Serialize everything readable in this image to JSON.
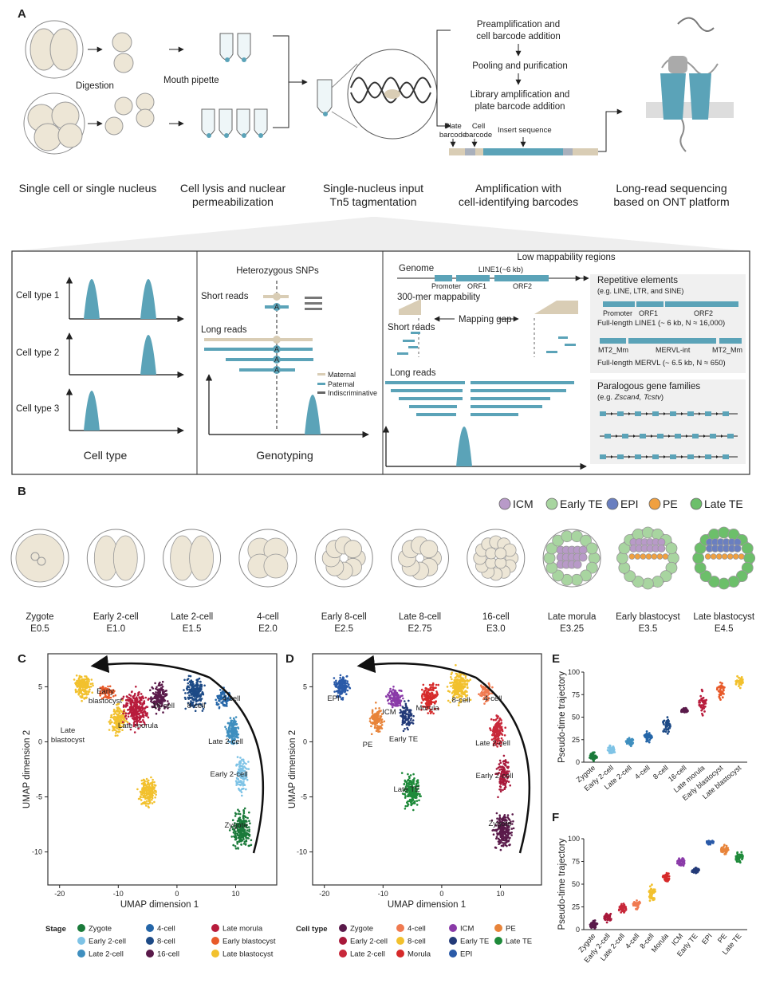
{
  "panel_a": {
    "label": "A",
    "digestion": "Digestion",
    "mouth_pipette": "Mouth pipette",
    "steps": [
      "Preamplification and cell barcode addition",
      "Pooling and purification",
      "Library amplification and plate barcode addition"
    ],
    "barcode_labels": {
      "plate": "Plate barcode",
      "cell": "Cell barcode",
      "insert": "Insert sequence"
    },
    "captions": [
      "Single cell or single nucleus",
      "Cell lysis and nuclear permeabilization",
      "Single-nucleus input Tn5 tagmentation",
      "Amplification with cell-identifying barcodes",
      "Long-read sequencing based on ONT platform"
    ],
    "cell_types": [
      "Cell type 1",
      "Cell type 2",
      "Cell type 3"
    ],
    "cell_type_caption": "Cell type",
    "het_snps": "Heterozygous SNPs",
    "short_reads": "Short reads",
    "long_reads": "Long reads",
    "allele": "A",
    "geno_legend": [
      "Maternal",
      "Paternal",
      "Indiscriminative"
    ],
    "genotyping_caption": "Genotyping",
    "low_map_title": "Low mappability regions",
    "genome": "Genome",
    "line1": "LINE1(~6 kb)",
    "promoter": "Promoter",
    "orf1": "ORF1",
    "orf2": "ORF2",
    "mappability": "300-mer mappability",
    "mapping_gap": "Mapping gap",
    "repetitive": "Repetitive elements",
    "repetitive_eg": "(e.g. LINE, LTR, and SINE)",
    "fl_line1": "Full-length LINE1 (~ 6 kb, N ≈ 16,000)",
    "mt2": "MT2_Mm",
    "mervl_int": "MERVL-int",
    "fl_mervl": "Full-length MERVL (~ 6.5 kb, N ≈ 650)",
    "paralogous": "Paralogous gene families",
    "paralogous_eg_prefix": "(e.g. ",
    "paralogous_eg_genes": "Zscan4, Tcstv",
    "paralogous_eg_suffix": ")"
  },
  "panel_b": {
    "label": "B",
    "legend": [
      {
        "name": "ICM",
        "color": "#b89ac8"
      },
      {
        "name": "Early TE",
        "color": "#a8d5a0"
      },
      {
        "name": "EPI",
        "color": "#6a7fc0"
      },
      {
        "name": "PE",
        "color": "#f0a040"
      },
      {
        "name": "Late TE",
        "color": "#6cbf6a"
      }
    ],
    "stages": [
      {
        "name": "Zygote",
        "day": "E0.5"
      },
      {
        "name": "Early 2-cell",
        "day": "E1.0"
      },
      {
        "name": "Late 2-cell",
        "day": "E1.5"
      },
      {
        "name": "4-cell",
        "day": "E2.0"
      },
      {
        "name": "Early 8-cell",
        "day": "E2.5"
      },
      {
        "name": "Late 8-cell",
        "day": "E2.75"
      },
      {
        "name": "16-cell",
        "day": "E3.0"
      },
      {
        "name": "Late morula",
        "day": "E3.25"
      },
      {
        "name": "Early blastocyst",
        "day": "E3.5"
      },
      {
        "name": "Late blastocyst",
        "day": "E4.5"
      }
    ]
  },
  "panel_c": {
    "label": "C",
    "xlabel": "UMAP dimension 1",
    "ylabel": "UMAP dimension 2",
    "xticks": [
      "-20",
      "-10",
      "0",
      "10"
    ],
    "yticks": [
      "5",
      "0",
      "-5",
      "-10"
    ],
    "cluster_labels": [
      "Early blastocyst",
      "Late blastocyst",
      "16-cell",
      "8-cell",
      "4-cell",
      "Late morula",
      "Late 2-cell",
      "Early 2-cell",
      "Zygote"
    ],
    "legend_title": "Stage",
    "legend": [
      {
        "name": "Zygote",
        "color": "#1a7a3a"
      },
      {
        "name": "Early 2-cell",
        "color": "#7ec3e6"
      },
      {
        "name": "Late 2-cell",
        "color": "#3f8fbf"
      },
      {
        "name": "4-cell",
        "color": "#2566a8"
      },
      {
        "name": "8-cell",
        "color": "#1d4a86"
      },
      {
        "name": "16-cell",
        "color": "#5a1a4a"
      },
      {
        "name": "Late morula",
        "color": "#b81c3c"
      },
      {
        "name": "Early blastocyst",
        "color": "#e85a2a"
      },
      {
        "name": "Late blastocyst",
        "color": "#f2c12e"
      }
    ]
  },
  "panel_d": {
    "label": "D",
    "xlabel": "UMAP dimension 1",
    "ylabel": "UMAP dimension 2",
    "xticks": [
      "-20",
      "-10",
      "0",
      "10"
    ],
    "yticks": [
      "5",
      "0",
      "-5",
      "-10"
    ],
    "cluster_labels": [
      "EPI",
      "ICM",
      "Morula",
      "8-cell",
      "4-cell",
      "PE",
      "Early TE",
      "Late 2-cell",
      "Early 2-cell",
      "Late TE",
      "Zygote"
    ],
    "legend_title": "Cell type",
    "legend": [
      {
        "name": "Zygote",
        "color": "#5a1a4a"
      },
      {
        "name": "Early 2-cell",
        "color": "#a8183a"
      },
      {
        "name": "Late 2-cell",
        "color": "#c8283a"
      },
      {
        "name": "4-cell",
        "color": "#f07a50"
      },
      {
        "name": "8-cell",
        "color": "#f2c12e"
      },
      {
        "name": "Morula",
        "color": "#d62a2a"
      },
      {
        "name": "ICM",
        "color": "#8a3aa8"
      },
      {
        "name": "Early TE",
        "color": "#233a78"
      },
      {
        "name": "EPI",
        "color": "#2a5aa8"
      },
      {
        "name": "PE",
        "color": "#e8843a"
      },
      {
        "name": "Late TE",
        "color": "#1e8a3a"
      }
    ]
  },
  "chart_data": [
    {
      "type": "scatter",
      "panel": "E",
      "ylabel": "Pseudo-time trajectory",
      "ylim": [
        0,
        100
      ],
      "yticks": [
        0,
        25,
        50,
        75,
        100
      ],
      "categories": [
        "Zygote",
        "Early 2-cell",
        "Late 2-cell",
        "4-cell",
        "8-cell",
        "16-cell",
        "Late morula",
        "Early blastocyst",
        "Late blastocyst"
      ],
      "medians": [
        6,
        14,
        23,
        28,
        40,
        57,
        65,
        80,
        90
      ],
      "spread": [
        4,
        5,
        4,
        5,
        9,
        3,
        11,
        8,
        6
      ],
      "colors": [
        "#1a7a3a",
        "#7ec3e6",
        "#3f8fbf",
        "#2566a8",
        "#1d4a86",
        "#5a1a4a",
        "#b81c3c",
        "#e85a2a",
        "#f2c12e"
      ]
    },
    {
      "type": "scatter",
      "panel": "F",
      "ylabel": "Pseudo-time trajectory",
      "ylim": [
        0,
        100
      ],
      "yticks": [
        0,
        25,
        50,
        75,
        100
      ],
      "categories": [
        "Zygote",
        "Early 2-cell",
        "Late 2-cell",
        "4-cell",
        "8-cell",
        "Morula",
        "ICM",
        "Early TE",
        "EPI",
        "PE",
        "Late TE"
      ],
      "medians": [
        6,
        14,
        23,
        28,
        40,
        58,
        74,
        65,
        96,
        88,
        80
      ],
      "spread": [
        4,
        5,
        4,
        4,
        9,
        6,
        5,
        3,
        2,
        5,
        6
      ],
      "colors": [
        "#5a1a4a",
        "#a8183a",
        "#c8283a",
        "#f07a50",
        "#f2c12e",
        "#d62a2a",
        "#8a3aa8",
        "#233a78",
        "#2a5aa8",
        "#e8843a",
        "#1e8a3a"
      ]
    }
  ]
}
